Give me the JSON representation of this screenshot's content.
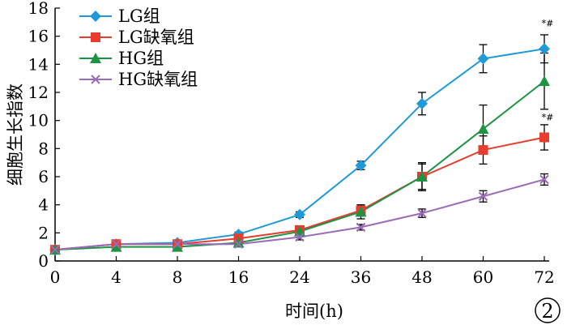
{
  "chart_data": {
    "type": "line",
    "xlabel": "时间(h)",
    "ylabel": "细胞生长指数",
    "x": [
      "0",
      "4",
      "8",
      "16",
      "24",
      "36",
      "48",
      "60",
      "72"
    ],
    "ylim": [
      0,
      18
    ],
    "yticks": [
      "0",
      "2",
      "4",
      "6",
      "8",
      "10",
      "12",
      "14",
      "16",
      "18"
    ],
    "legend_position": "top-left",
    "grid": false,
    "series": [
      {
        "name": "LG组",
        "color": "#1f9ad6",
        "marker": "diamond",
        "values": [
          0.8,
          1.2,
          1.3,
          1.9,
          3.3,
          6.8,
          11.2,
          14.4,
          15.1
        ],
        "errors": [
          0.1,
          0.1,
          0.1,
          0.15,
          0.2,
          0.3,
          0.8,
          1.0,
          1.0
        ]
      },
      {
        "name": "LG缺氧组",
        "color": "#e63d2e",
        "marker": "square",
        "values": [
          0.8,
          1.2,
          1.2,
          1.6,
          2.2,
          3.6,
          6.0,
          7.9,
          8.8
        ],
        "errors": [
          0.1,
          0.1,
          0.1,
          0.1,
          0.2,
          0.4,
          0.9,
          1.0,
          0.9
        ]
      },
      {
        "name": "HG组",
        "color": "#1d9444",
        "marker": "triangle",
        "values": [
          0.8,
          1.0,
          1.0,
          1.3,
          2.1,
          3.5,
          6.0,
          9.4,
          12.8
        ],
        "errors": [
          0.1,
          0.1,
          0.1,
          0.1,
          0.2,
          0.5,
          1.0,
          1.7,
          2.0
        ]
      },
      {
        "name": "HG缺氧组",
        "color": "#9a6bb6",
        "marker": "x",
        "values": [
          0.8,
          1.2,
          1.2,
          1.2,
          1.7,
          2.4,
          3.4,
          4.6,
          5.8
        ],
        "errors": [
          0.1,
          0.1,
          0.1,
          0.1,
          0.2,
          0.2,
          0.3,
          0.4,
          0.4
        ]
      }
    ],
    "annotations": [
      {
        "text": "*#",
        "x": "72",
        "y": 16.7
      },
      {
        "text": "*#",
        "x": "72",
        "y": 10.0
      }
    ],
    "badge": "2"
  }
}
